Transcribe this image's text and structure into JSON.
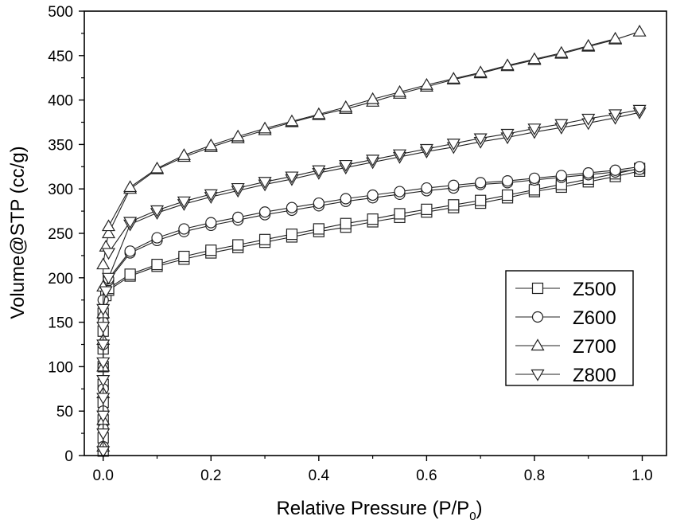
{
  "chart_data": {
    "type": "scatter",
    "title": "",
    "xlabel": "Relative Pressure (P/P",
    "xlabel_subscript": "0",
    "xlabel_suffix": ")",
    "ylabel": "Volume@STP (cc/g)",
    "xlim": [
      -0.035,
      1.045
    ],
    "ylim": [
      0,
      500
    ],
    "x_ticks": [
      "0.0",
      "0.2",
      "0.4",
      "0.6",
      "0.8",
      "1.0"
    ],
    "y_ticks": [
      "0",
      "50",
      "100",
      "150",
      "200",
      "250",
      "300",
      "350",
      "400",
      "450",
      "500"
    ],
    "legend_position": "right-middle",
    "grid": false,
    "series": [
      {
        "name": "Z500",
        "marker": "square",
        "adsorption": [
          [
            0.0,
            5
          ],
          [
            0.0,
            20
          ],
          [
            0.0,
            40
          ],
          [
            0.0,
            60
          ],
          [
            0.0,
            80
          ],
          [
            0.0,
            100
          ],
          [
            0.0,
            120
          ],
          [
            0.0,
            140
          ],
          [
            0.0,
            160
          ],
          [
            0.005,
            180
          ],
          [
            0.01,
            186
          ],
          [
            0.05,
            202
          ],
          [
            0.1,
            213
          ],
          [
            0.15,
            221
          ],
          [
            0.2,
            228
          ],
          [
            0.25,
            234
          ],
          [
            0.3,
            240
          ],
          [
            0.35,
            246
          ],
          [
            0.4,
            252
          ],
          [
            0.45,
            257
          ],
          [
            0.5,
            263
          ],
          [
            0.55,
            268
          ],
          [
            0.6,
            274
          ],
          [
            0.65,
            279
          ],
          [
            0.7,
            284
          ],
          [
            0.75,
            290
          ],
          [
            0.8,
            297
          ],
          [
            0.85,
            302
          ],
          [
            0.9,
            308
          ],
          [
            0.95,
            314
          ],
          [
            0.995,
            320
          ]
        ],
        "desorption": [
          [
            0.995,
            323
          ],
          [
            0.95,
            317
          ],
          [
            0.9,
            311
          ],
          [
            0.85,
            305
          ],
          [
            0.8,
            299
          ],
          [
            0.75,
            293
          ],
          [
            0.7,
            287
          ],
          [
            0.65,
            282
          ],
          [
            0.6,
            277
          ],
          [
            0.55,
            272
          ],
          [
            0.5,
            266
          ],
          [
            0.45,
            261
          ],
          [
            0.4,
            255
          ],
          [
            0.35,
            249
          ],
          [
            0.3,
            243
          ],
          [
            0.25,
            237
          ],
          [
            0.2,
            231
          ],
          [
            0.15,
            224
          ],
          [
            0.1,
            215
          ],
          [
            0.05,
            204
          ],
          [
            0.01,
            188
          ]
        ]
      },
      {
        "name": "Z600",
        "marker": "circle",
        "adsorption": [
          [
            0.0,
            10
          ],
          [
            0.0,
            30
          ],
          [
            0.0,
            50
          ],
          [
            0.0,
            75
          ],
          [
            0.0,
            100
          ],
          [
            0.0,
            125
          ],
          [
            0.0,
            150
          ],
          [
            0.0,
            175
          ],
          [
            0.005,
            190
          ],
          [
            0.01,
            197
          ],
          [
            0.05,
            228
          ],
          [
            0.1,
            242
          ],
          [
            0.15,
            252
          ],
          [
            0.2,
            259
          ],
          [
            0.25,
            265
          ],
          [
            0.3,
            271
          ],
          [
            0.35,
            276
          ],
          [
            0.4,
            281
          ],
          [
            0.45,
            286
          ],
          [
            0.5,
            290
          ],
          [
            0.55,
            294
          ],
          [
            0.6,
            298
          ],
          [
            0.65,
            301
          ],
          [
            0.7,
            305
          ],
          [
            0.75,
            307
          ],
          [
            0.8,
            310
          ],
          [
            0.85,
            313
          ],
          [
            0.9,
            316
          ],
          [
            0.95,
            319
          ],
          [
            0.995,
            322
          ]
        ],
        "desorption": [
          [
            0.995,
            325
          ],
          [
            0.95,
            321
          ],
          [
            0.9,
            318
          ],
          [
            0.85,
            315
          ],
          [
            0.8,
            312
          ],
          [
            0.75,
            309
          ],
          [
            0.7,
            307
          ],
          [
            0.65,
            304
          ],
          [
            0.6,
            301
          ],
          [
            0.55,
            297
          ],
          [
            0.5,
            293
          ],
          [
            0.45,
            289
          ],
          [
            0.4,
            284
          ],
          [
            0.35,
            279
          ],
          [
            0.3,
            274
          ],
          [
            0.25,
            268
          ],
          [
            0.2,
            262
          ],
          [
            0.15,
            255
          ],
          [
            0.1,
            245
          ],
          [
            0.05,
            230
          ],
          [
            0.01,
            199
          ]
        ]
      },
      {
        "name": "Z700",
        "marker": "triangle-up",
        "adsorption": [
          [
            0.0,
            10
          ],
          [
            0.0,
            40
          ],
          [
            0.0,
            70
          ],
          [
            0.0,
            100
          ],
          [
            0.0,
            130
          ],
          [
            0.0,
            160
          ],
          [
            0.0,
            190
          ],
          [
            0.0,
            215
          ],
          [
            0.005,
            235
          ],
          [
            0.01,
            250
          ],
          [
            0.05,
            300
          ],
          [
            0.1,
            322
          ],
          [
            0.15,
            336
          ],
          [
            0.2,
            347
          ],
          [
            0.25,
            357
          ],
          [
            0.3,
            366
          ],
          [
            0.35,
            375
          ],
          [
            0.4,
            383
          ],
          [
            0.45,
            390
          ],
          [
            0.5,
            398
          ],
          [
            0.55,
            407
          ],
          [
            0.6,
            415
          ],
          [
            0.65,
            423
          ],
          [
            0.7,
            430
          ],
          [
            0.75,
            438
          ],
          [
            0.8,
            445
          ],
          [
            0.85,
            452
          ],
          [
            0.9,
            460
          ],
          [
            0.95,
            468
          ],
          [
            0.995,
            477
          ]
        ],
        "desorption": [
          [
            0.95,
            469
          ],
          [
            0.9,
            461
          ],
          [
            0.85,
            453
          ],
          [
            0.8,
            446
          ],
          [
            0.75,
            439
          ],
          [
            0.7,
            431
          ],
          [
            0.65,
            424
          ],
          [
            0.6,
            417
          ],
          [
            0.55,
            409
          ],
          [
            0.5,
            401
          ],
          [
            0.45,
            392
          ],
          [
            0.4,
            384
          ],
          [
            0.35,
            376
          ],
          [
            0.3,
            368
          ],
          [
            0.25,
            359
          ],
          [
            0.2,
            349
          ],
          [
            0.15,
            338
          ],
          [
            0.1,
            323
          ],
          [
            0.05,
            302
          ],
          [
            0.01,
            258
          ]
        ]
      },
      {
        "name": "Z800",
        "marker": "triangle-down",
        "adsorption": [
          [
            0.0,
            5
          ],
          [
            0.0,
            25
          ],
          [
            0.0,
            45
          ],
          [
            0.0,
            65
          ],
          [
            0.0,
            85
          ],
          [
            0.0,
            105
          ],
          [
            0.0,
            125
          ],
          [
            0.0,
            145
          ],
          [
            0.0,
            165
          ],
          [
            0.005,
            185
          ],
          [
            0.01,
            200
          ],
          [
            0.05,
            260
          ],
          [
            0.1,
            273
          ],
          [
            0.15,
            283
          ],
          [
            0.2,
            291
          ],
          [
            0.25,
            298
          ],
          [
            0.3,
            305
          ],
          [
            0.35,
            311
          ],
          [
            0.4,
            318
          ],
          [
            0.45,
            324
          ],
          [
            0.5,
            330
          ],
          [
            0.55,
            336
          ],
          [
            0.6,
            342
          ],
          [
            0.65,
            347
          ],
          [
            0.7,
            353
          ],
          [
            0.75,
            358
          ],
          [
            0.8,
            364
          ],
          [
            0.85,
            369
          ],
          [
            0.9,
            374
          ],
          [
            0.95,
            380
          ],
          [
            0.995,
            386
          ]
        ],
        "desorption": [
          [
            0.995,
            389
          ],
          [
            0.95,
            384
          ],
          [
            0.9,
            379
          ],
          [
            0.85,
            373
          ],
          [
            0.8,
            368
          ],
          [
            0.75,
            362
          ],
          [
            0.7,
            357
          ],
          [
            0.65,
            351
          ],
          [
            0.6,
            345
          ],
          [
            0.55,
            339
          ],
          [
            0.5,
            333
          ],
          [
            0.45,
            327
          ],
          [
            0.4,
            321
          ],
          [
            0.35,
            314
          ],
          [
            0.3,
            308
          ],
          [
            0.25,
            301
          ],
          [
            0.2,
            294
          ],
          [
            0.15,
            286
          ],
          [
            0.1,
            276
          ],
          [
            0.05,
            263
          ],
          [
            0.01,
            228
          ]
        ]
      }
    ]
  }
}
